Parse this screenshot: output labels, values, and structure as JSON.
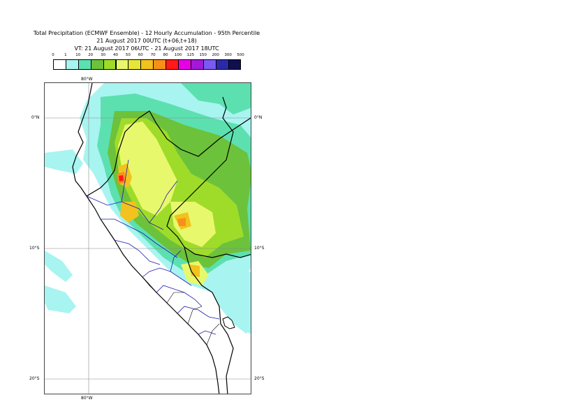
{
  "title": {
    "line1": "Total Precipitation (ECMWF Ensemble) - 12 Hourly Accumulation - 95th Percentile",
    "line2": "21 August 2017 00UTC (t+06,t+18)",
    "line3": "VT: 21 August 2017 06UTC - 21 August 2017 18UTC"
  },
  "legend": {
    "thresholds": [
      "0",
      "1",
      "10",
      "20",
      "30",
      "40",
      "50",
      "60",
      "70",
      "80",
      "100",
      "125",
      "150",
      "200",
      "300",
      "500"
    ],
    "colors": [
      "#ffffff",
      "#a8f4f0",
      "#5de0b0",
      "#6cc23a",
      "#9fdc2a",
      "#e8f86c",
      "#e6e63a",
      "#f2c21e",
      "#f7901a",
      "#ff1a1a",
      "#e600e6",
      "#a21ad6",
      "#7a5af0",
      "#2a2aa8",
      "#10104e"
    ]
  },
  "axes": {
    "top_lon": "80°W",
    "bottom_lon": "80°W",
    "left_lats": [
      "0°N",
      "10°S",
      "20°S"
    ],
    "right_lats": [
      "0°N",
      "10°S",
      "20°S"
    ]
  },
  "map": {
    "region": "Peru / Ecuador",
    "grid_lines": true,
    "precip_colors": {
      "light": "#a8f4f0",
      "moderate": "#5de0b0",
      "green": "#6cc23a",
      "yellowgreen": "#9fdc2a",
      "yellow": "#e8f86c",
      "gold": "#f2c21e",
      "orange": "#f7901a",
      "red": "#ff1a1a"
    }
  }
}
